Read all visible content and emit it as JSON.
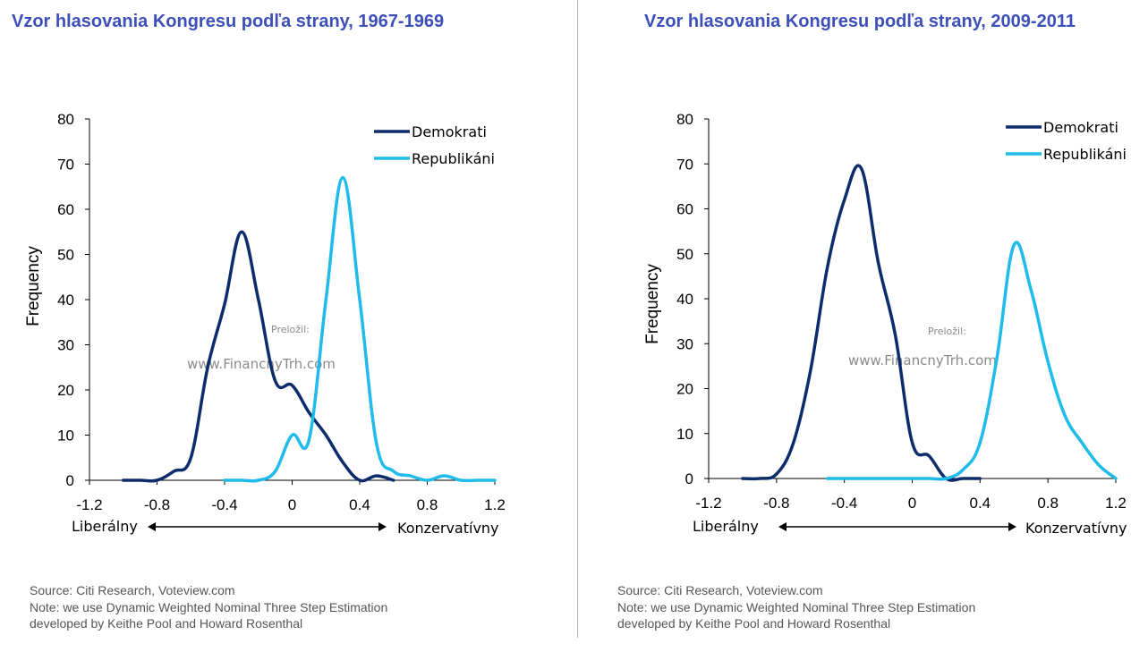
{
  "charts": [
    {
      "title": "Vzor hlasovania Kongresu podľa strany, 1967-1969",
      "direction": {
        "left": "Liberálny",
        "right": "Konzervatívny"
      },
      "watermark": {
        "line1": "Preložil:",
        "line2": "www.FinancnyTrh.com"
      },
      "source_lines": [
        "Source: Citi Research, Voteview.com",
        "Note: we use Dynamic Weighted Nominal Three Step Estimation",
        "developed by Keithe Pool and Howard Rosenthal"
      ],
      "chart_data": {
        "type": "line",
        "title": "Vzor hlasovania Kongresu podľa strany, 1967-1969",
        "xlabel": "",
        "ylabel": "Frequency",
        "xlim": [
          -1.2,
          1.2
        ],
        "ylim": [
          0,
          80
        ],
        "x_ticks": [
          "-1.2",
          "-0.8",
          "-0.4",
          "0",
          "0.4",
          "0.8",
          "1.2"
        ],
        "y_ticks": [
          "0",
          "10",
          "20",
          "30",
          "40",
          "50",
          "60",
          "70",
          "80"
        ],
        "grid": false,
        "legend_position": "top-right",
        "series": [
          {
            "name": "Demokrati",
            "color": "#0d2c6c",
            "x": [
              -1.0,
              -0.9,
              -0.8,
              -0.7,
              -0.6,
              -0.5,
              -0.4,
              -0.3,
              -0.2,
              -0.1,
              0.0,
              0.1,
              0.2,
              0.3,
              0.4,
              0.5,
              0.6
            ],
            "y": [
              0,
              0,
              0,
              2,
              5,
              25,
              39,
              55,
              40,
              22,
              21,
              15,
              10,
              4,
              0,
              1,
              0
            ]
          },
          {
            "name": "Republikáni",
            "color": "#1fbbea",
            "x": [
              -0.4,
              -0.3,
              -0.2,
              -0.1,
              0.0,
              0.1,
              0.2,
              0.3,
              0.4,
              0.5,
              0.6,
              0.7,
              0.8,
              0.9,
              1.0,
              1.1,
              1.2
            ],
            "y": [
              0,
              0,
              0,
              2,
              10,
              9,
              40,
              67,
              40,
              8,
              2,
              1,
              0,
              1,
              0,
              0,
              0
            ]
          }
        ]
      }
    },
    {
      "title": "Vzor hlasovania Kongresu podľa strany, 2009-2011",
      "direction": {
        "left": "Liberálny",
        "right": "Konzervatívny"
      },
      "watermark": {
        "line1": "Preložil:",
        "line2": "www.FinancnyTrh.com"
      },
      "source_lines": [
        "Source: Citi Research, Voteview.com",
        "Note: we use Dynamic Weighted Nominal Three Step Estimation",
        "developed by Keithe Pool and Howard Rosenthal"
      ],
      "chart_data": {
        "type": "line",
        "title": "Vzor hlasovania Kongresu podľa strany, 2009-2011",
        "xlabel": "",
        "ylabel": "Frequency",
        "xlim": [
          -1.2,
          1.2
        ],
        "ylim": [
          0,
          80
        ],
        "x_ticks": [
          "-1.2",
          "-0.8",
          "-0.4",
          "0",
          "0.4",
          "0.8",
          "1.2"
        ],
        "y_ticks": [
          "0",
          "10",
          "20",
          "30",
          "40",
          "50",
          "60",
          "70",
          "80"
        ],
        "grid": false,
        "legend_position": "top-right",
        "series": [
          {
            "name": "Demokrati",
            "color": "#0d2c6c",
            "x": [
              -1.0,
              -0.9,
              -0.8,
              -0.7,
              -0.6,
              -0.5,
              -0.4,
              -0.3,
              -0.2,
              -0.1,
              0.0,
              0.1,
              0.2,
              0.3,
              0.4
            ],
            "y": [
              0,
              0,
              1,
              8,
              24,
              47,
              62,
              69,
              48,
              32,
              8,
              5,
              0,
              0,
              0
            ]
          },
          {
            "name": "Republikáni",
            "color": "#1fbbea",
            "x": [
              -0.5,
              -0.4,
              -0.3,
              -0.2,
              -0.1,
              0.0,
              0.1,
              0.2,
              0.3,
              0.4,
              0.5,
              0.6,
              0.7,
              0.8,
              0.9,
              1.0,
              1.1,
              1.2
            ],
            "y": [
              0,
              0,
              0,
              0,
              0,
              0,
              0,
              0,
              2,
              8,
              27,
              52,
              42,
              26,
              14,
              8,
              3,
              0
            ]
          }
        ]
      }
    }
  ]
}
